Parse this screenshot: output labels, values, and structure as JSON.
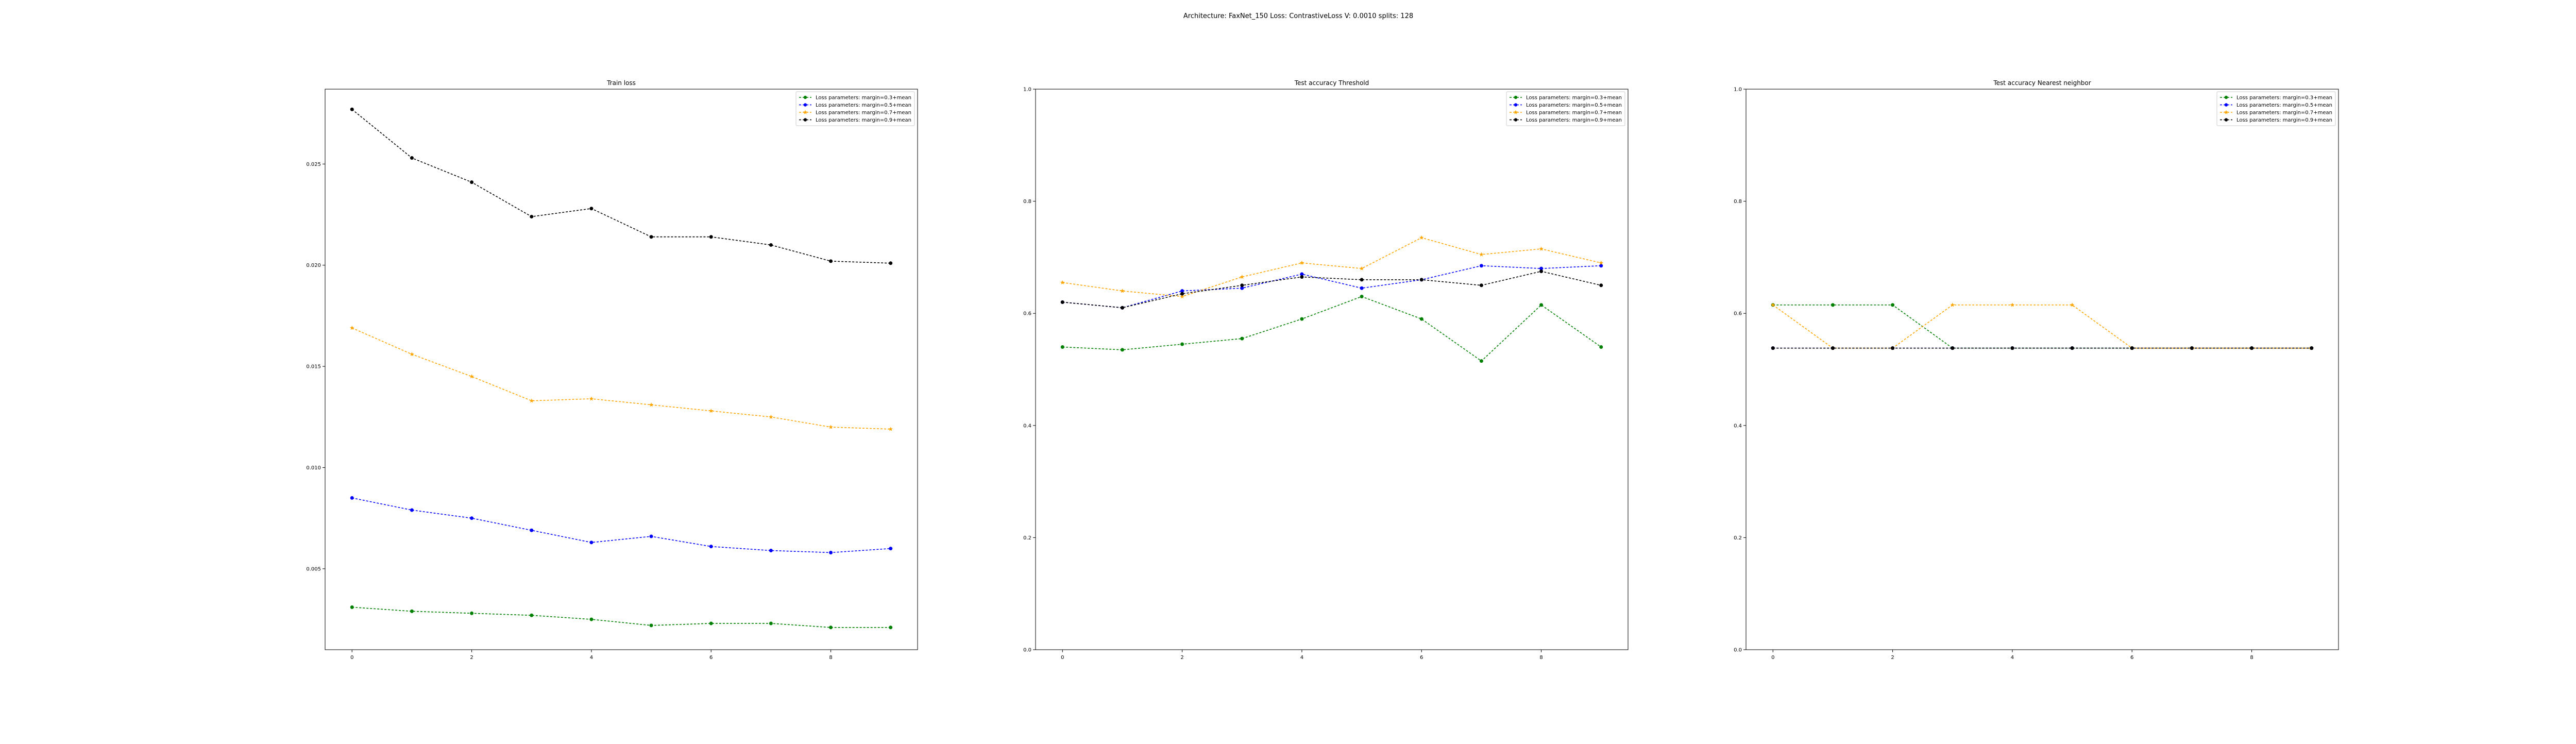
{
  "figure": {
    "suptitle": "Architecture: FaxNet_150 Loss: ContrastiveLoss V: 0.0010 splits: 128"
  },
  "colors": {
    "green": "#008000",
    "blue": "#0000ff",
    "orange": "#ffa500",
    "black": "#000000"
  },
  "chart_data": [
    {
      "type": "line",
      "title": "Train loss",
      "xlabel": "",
      "ylabel": "",
      "xlim": [
        -0.45,
        9.45
      ],
      "ylim": [
        0.001,
        0.0287
      ],
      "xticks": [
        0,
        2,
        4,
        6,
        8
      ],
      "yticks": [
        0.005,
        0.01,
        0.015,
        0.02,
        0.025
      ],
      "ytick_labels": [
        "0.005",
        "0.010",
        "0.015",
        "0.020",
        "0.025"
      ],
      "grid": false,
      "legend": "top-right",
      "x": [
        0,
        1,
        2,
        3,
        4,
        5,
        6,
        7,
        8,
        9
      ],
      "series": [
        {
          "name": "Loss parameters: margin=0.3+mean",
          "color": "#008000",
          "marker": "circle",
          "values": [
            0.0031,
            0.0029,
            0.0028,
            0.0027,
            0.0025,
            0.0022,
            0.0023,
            0.0023,
            0.0021,
            0.0021
          ]
        },
        {
          "name": "Loss parameters: margin=0.5+mean",
          "color": "#0000ff",
          "marker": "circle",
          "values": [
            0.0085,
            0.0079,
            0.0075,
            0.0069,
            0.0063,
            0.0066,
            0.0061,
            0.0059,
            0.0058,
            0.006
          ]
        },
        {
          "name": "Loss parameters: margin=0.7+mean",
          "color": "#ffa500",
          "marker": "star",
          "values": [
            0.0169,
            0.0156,
            0.0145,
            0.0133,
            0.0134,
            0.0131,
            0.0128,
            0.0125,
            0.012,
            0.0119
          ]
        },
        {
          "name": "Loss parameters: margin=0.9+mean",
          "color": "#000000",
          "marker": "circle",
          "values": [
            0.0277,
            0.0253,
            0.0241,
            0.0224,
            0.0228,
            0.0214,
            0.0214,
            0.021,
            0.0202,
            0.0201
          ]
        }
      ]
    },
    {
      "type": "line",
      "title": "Test accuracy Threshold",
      "xlabel": "",
      "ylabel": "",
      "xlim": [
        -0.45,
        9.45
      ],
      "ylim": [
        0.0,
        1.0
      ],
      "xticks": [
        0,
        2,
        4,
        6,
        8
      ],
      "yticks": [
        0.0,
        0.2,
        0.4,
        0.6,
        0.8,
        1.0
      ],
      "ytick_labels": [
        "0.0",
        "0.2",
        "0.4",
        "0.6",
        "0.8",
        "1.0"
      ],
      "grid": false,
      "legend": "top-right",
      "x": [
        0,
        1,
        2,
        3,
        4,
        5,
        6,
        7,
        8,
        9
      ],
      "series": [
        {
          "name": "Loss parameters: margin=0.3+mean",
          "color": "#008000",
          "marker": "circle",
          "values": [
            0.54,
            0.535,
            0.545,
            0.555,
            0.59,
            0.63,
            0.59,
            0.515,
            0.615,
            0.54
          ]
        },
        {
          "name": "Loss parameters: margin=0.5+mean",
          "color": "#0000ff",
          "marker": "circle",
          "values": [
            0.62,
            0.61,
            0.64,
            0.645,
            0.67,
            0.645,
            0.66,
            0.685,
            0.68,
            0.685
          ]
        },
        {
          "name": "Loss parameters: margin=0.7+mean",
          "color": "#ffa500",
          "marker": "star",
          "values": [
            0.655,
            0.64,
            0.63,
            0.665,
            0.69,
            0.68,
            0.735,
            0.705,
            0.715,
            0.69
          ]
        },
        {
          "name": "Loss parameters: margin=0.9+mean",
          "color": "#000000",
          "marker": "circle",
          "values": [
            0.62,
            0.61,
            0.635,
            0.65,
            0.665,
            0.66,
            0.66,
            0.65,
            0.675,
            0.65
          ]
        }
      ]
    },
    {
      "type": "line",
      "title": "Test accuracy Nearest neighbor",
      "xlabel": "",
      "ylabel": "",
      "xlim": [
        -0.45,
        9.45
      ],
      "ylim": [
        0.0,
        1.0
      ],
      "xticks": [
        0,
        2,
        4,
        6,
        8
      ],
      "yticks": [
        0.0,
        0.2,
        0.4,
        0.6,
        0.8,
        1.0
      ],
      "ytick_labels": [
        "0.0",
        "0.2",
        "0.4",
        "0.6",
        "0.8",
        "1.0"
      ],
      "grid": false,
      "legend": "top-right",
      "x": [
        0,
        1,
        2,
        3,
        4,
        5,
        6,
        7,
        8,
        9
      ],
      "series": [
        {
          "name": "Loss parameters: margin=0.3+mean",
          "color": "#008000",
          "marker": "circle",
          "values": [
            0.615,
            0.615,
            0.615,
            0.538,
            0.538,
            0.538,
            0.538,
            0.538,
            0.538,
            0.538
          ]
        },
        {
          "name": "Loss parameters: margin=0.5+mean",
          "color": "#0000ff",
          "marker": "circle",
          "values": [
            0.538,
            0.538,
            0.538,
            0.538,
            0.538,
            0.538,
            0.538,
            0.538,
            0.538,
            0.538
          ]
        },
        {
          "name": "Loss parameters: margin=0.7+mean",
          "color": "#ffa500",
          "marker": "star",
          "values": [
            0.615,
            0.538,
            0.538,
            0.615,
            0.615,
            0.615,
            0.538,
            0.538,
            0.538,
            0.538
          ]
        },
        {
          "name": "Loss parameters: margin=0.9+mean",
          "color": "#000000",
          "marker": "circle",
          "values": [
            0.538,
            0.538,
            0.538,
            0.538,
            0.538,
            0.538,
            0.538,
            0.538,
            0.538,
            0.538
          ]
        }
      ]
    }
  ]
}
